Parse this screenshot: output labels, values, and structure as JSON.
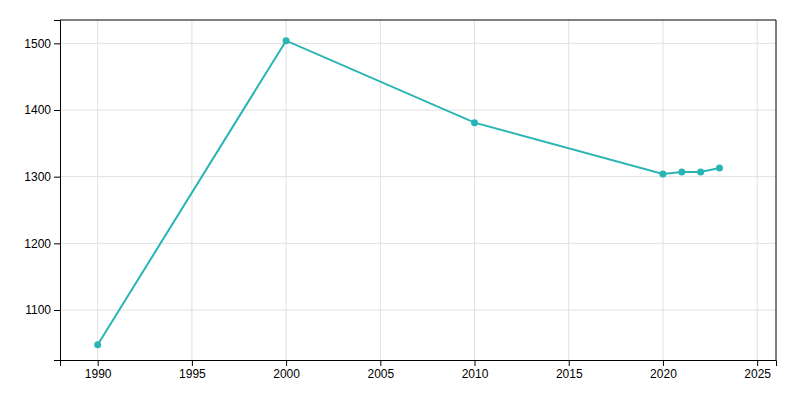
{
  "chart_data": {
    "type": "line",
    "x": [
      1990,
      2000,
      2010,
      2020,
      2021,
      2022,
      2023
    ],
    "values": [
      1048,
      1504,
      1381,
      1304,
      1307,
      1307,
      1313
    ],
    "color": "#2ab5b5",
    "marker": "circle",
    "xlim": [
      1988,
      2026
    ],
    "ylim": [
      1025,
      1535
    ],
    "xticks": [
      1990,
      1995,
      2000,
      2005,
      2010,
      2015,
      2020,
      2025
    ],
    "yticks": [
      1100,
      1200,
      1300,
      1400,
      1500
    ],
    "grid": true
  }
}
